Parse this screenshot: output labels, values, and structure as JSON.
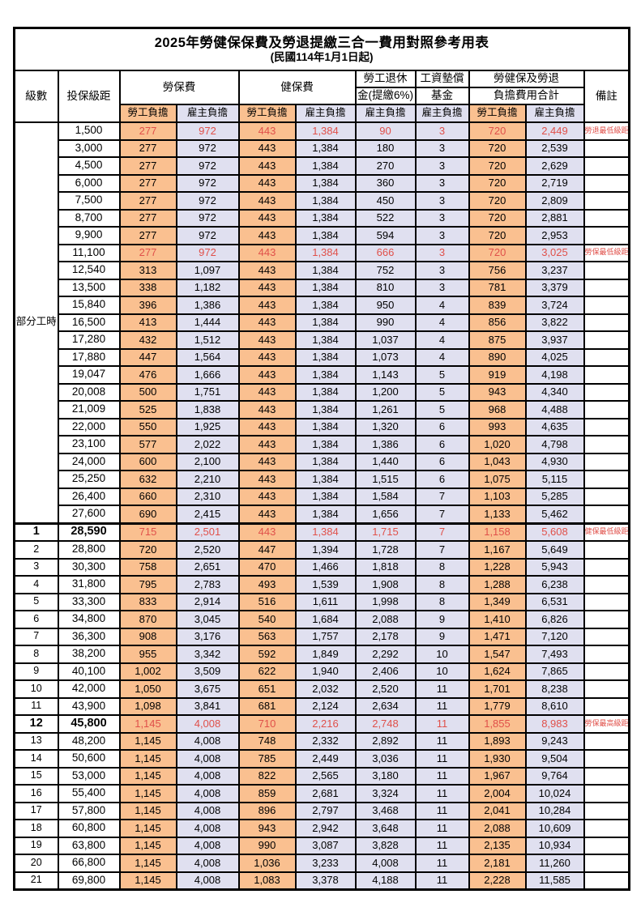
{
  "table": {
    "title": "2025年勞健保保費及勞退提繳三合一費用對照參考用表",
    "subtitle": "(民國114年1月1日起)",
    "headers": {
      "level": "級數",
      "bracket": "投保級距",
      "labor_fee": "勞保費",
      "health_fee": "健保費",
      "pension_top": "勞工退休",
      "pension_bottom": "金(提繳6%)",
      "wage_fund_top": "工資墊償",
      "wage_fund_bottom": "基金",
      "total_top": "勞健保及勞退",
      "total_bottom": "負擔費用合計",
      "remark": "備註",
      "employee_share": "勞工負擔",
      "employer_share": "雇主負擔"
    },
    "part_time_label": "部分工時",
    "part_time_rowspan": 23,
    "colors": {
      "employee_bg": "#FAC090",
      "employer_bg": "#E0E0F0",
      "highlight_text": "#E0504A",
      "border": "#000000"
    },
    "rows": [
      {
        "level": "",
        "bracket": "1,500",
        "values": [
          "277",
          "972",
          "443",
          "1,384",
          "90",
          "3",
          "720",
          "2,449"
        ],
        "remark": "勞退最低級距",
        "red": true,
        "bold": false
      },
      {
        "level": "",
        "bracket": "3,000",
        "values": [
          "277",
          "972",
          "443",
          "1,384",
          "180",
          "3",
          "720",
          "2,539"
        ],
        "remark": "",
        "red": false,
        "bold": false
      },
      {
        "level": "",
        "bracket": "4,500",
        "values": [
          "277",
          "972",
          "443",
          "1,384",
          "270",
          "3",
          "720",
          "2,629"
        ],
        "remark": "",
        "red": false,
        "bold": false
      },
      {
        "level": "",
        "bracket": "6,000",
        "values": [
          "277",
          "972",
          "443",
          "1,384",
          "360",
          "3",
          "720",
          "2,719"
        ],
        "remark": "",
        "red": false,
        "bold": false
      },
      {
        "level": "",
        "bracket": "7,500",
        "values": [
          "277",
          "972",
          "443",
          "1,384",
          "450",
          "3",
          "720",
          "2,809"
        ],
        "remark": "",
        "red": false,
        "bold": false
      },
      {
        "level": "",
        "bracket": "8,700",
        "values": [
          "277",
          "972",
          "443",
          "1,384",
          "522",
          "3",
          "720",
          "2,881"
        ],
        "remark": "",
        "red": false,
        "bold": false
      },
      {
        "level": "",
        "bracket": "9,900",
        "values": [
          "277",
          "972",
          "443",
          "1,384",
          "594",
          "3",
          "720",
          "2,953"
        ],
        "remark": "",
        "red": false,
        "bold": false
      },
      {
        "level": "",
        "bracket": "11,100",
        "values": [
          "277",
          "972",
          "443",
          "1,384",
          "666",
          "3",
          "720",
          "3,025"
        ],
        "remark": "勞保最低級距",
        "red": true,
        "bold": false
      },
      {
        "level": "",
        "bracket": "12,540",
        "values": [
          "313",
          "1,097",
          "443",
          "1,384",
          "752",
          "3",
          "756",
          "3,237"
        ],
        "remark": "",
        "red": false,
        "bold": false
      },
      {
        "level": "",
        "bracket": "13,500",
        "values": [
          "338",
          "1,182",
          "443",
          "1,384",
          "810",
          "3",
          "781",
          "3,379"
        ],
        "remark": "",
        "red": false,
        "bold": false
      },
      {
        "level": "",
        "bracket": "15,840",
        "values": [
          "396",
          "1,386",
          "443",
          "1,384",
          "950",
          "4",
          "839",
          "3,724"
        ],
        "remark": "",
        "red": false,
        "bold": false
      },
      {
        "level": "",
        "bracket": "16,500",
        "values": [
          "413",
          "1,444",
          "443",
          "1,384",
          "990",
          "4",
          "856",
          "3,822"
        ],
        "remark": "",
        "red": false,
        "bold": false
      },
      {
        "level": "",
        "bracket": "17,280",
        "values": [
          "432",
          "1,512",
          "443",
          "1,384",
          "1,037",
          "4",
          "875",
          "3,937"
        ],
        "remark": "",
        "red": false,
        "bold": false
      },
      {
        "level": "",
        "bracket": "17,880",
        "values": [
          "447",
          "1,564",
          "443",
          "1,384",
          "1,073",
          "4",
          "890",
          "4,025"
        ],
        "remark": "",
        "red": false,
        "bold": false
      },
      {
        "level": "",
        "bracket": "19,047",
        "values": [
          "476",
          "1,666",
          "443",
          "1,384",
          "1,143",
          "5",
          "919",
          "4,198"
        ],
        "remark": "",
        "red": false,
        "bold": false
      },
      {
        "level": "",
        "bracket": "20,008",
        "values": [
          "500",
          "1,751",
          "443",
          "1,384",
          "1,200",
          "5",
          "943",
          "4,340"
        ],
        "remark": "",
        "red": false,
        "bold": false
      },
      {
        "level": "",
        "bracket": "21,009",
        "values": [
          "525",
          "1,838",
          "443",
          "1,384",
          "1,261",
          "5",
          "968",
          "4,488"
        ],
        "remark": "",
        "red": false,
        "bold": false
      },
      {
        "level": "",
        "bracket": "22,000",
        "values": [
          "550",
          "1,925",
          "443",
          "1,384",
          "1,320",
          "6",
          "993",
          "4,635"
        ],
        "remark": "",
        "red": false,
        "bold": false
      },
      {
        "level": "",
        "bracket": "23,100",
        "values": [
          "577",
          "2,022",
          "443",
          "1,384",
          "1,386",
          "6",
          "1,020",
          "4,798"
        ],
        "remark": "",
        "red": false,
        "bold": false
      },
      {
        "level": "",
        "bracket": "24,000",
        "values": [
          "600",
          "2,100",
          "443",
          "1,384",
          "1,440",
          "6",
          "1,043",
          "4,930"
        ],
        "remark": "",
        "red": false,
        "bold": false
      },
      {
        "level": "",
        "bracket": "25,250",
        "values": [
          "632",
          "2,210",
          "443",
          "1,384",
          "1,515",
          "6",
          "1,075",
          "5,115"
        ],
        "remark": "",
        "red": false,
        "bold": false
      },
      {
        "level": "",
        "bracket": "26,400",
        "values": [
          "660",
          "2,310",
          "443",
          "1,384",
          "1,584",
          "7",
          "1,103",
          "5,285"
        ],
        "remark": "",
        "red": false,
        "bold": false
      },
      {
        "level": "",
        "bracket": "27,600",
        "values": [
          "690",
          "2,415",
          "443",
          "1,384",
          "1,656",
          "7",
          "1,133",
          "5,462"
        ],
        "remark": "",
        "red": false,
        "bold": false
      },
      {
        "level": "1",
        "bracket": "28,590",
        "values": [
          "715",
          "2,501",
          "443",
          "1,384",
          "1,715",
          "7",
          "1,158",
          "5,608"
        ],
        "remark": "健保最低級距",
        "red": true,
        "bold": true,
        "section_start": true
      },
      {
        "level": "2",
        "bracket": "28,800",
        "values": [
          "720",
          "2,520",
          "447",
          "1,394",
          "1,728",
          "7",
          "1,167",
          "5,649"
        ],
        "remark": "",
        "red": false,
        "bold": false
      },
      {
        "level": "3",
        "bracket": "30,300",
        "values": [
          "758",
          "2,651",
          "470",
          "1,466",
          "1,818",
          "8",
          "1,228",
          "5,943"
        ],
        "remark": "",
        "red": false,
        "bold": false
      },
      {
        "level": "4",
        "bracket": "31,800",
        "values": [
          "795",
          "2,783",
          "493",
          "1,539",
          "1,908",
          "8",
          "1,288",
          "6,238"
        ],
        "remark": "",
        "red": false,
        "bold": false
      },
      {
        "level": "5",
        "bracket": "33,300",
        "values": [
          "833",
          "2,914",
          "516",
          "1,611",
          "1,998",
          "8",
          "1,349",
          "6,531"
        ],
        "remark": "",
        "red": false,
        "bold": false
      },
      {
        "level": "6",
        "bracket": "34,800",
        "values": [
          "870",
          "3,045",
          "540",
          "1,684",
          "2,088",
          "9",
          "1,410",
          "6,826"
        ],
        "remark": "",
        "red": false,
        "bold": false
      },
      {
        "level": "7",
        "bracket": "36,300",
        "values": [
          "908",
          "3,176",
          "563",
          "1,757",
          "2,178",
          "9",
          "1,471",
          "7,120"
        ],
        "remark": "",
        "red": false,
        "bold": false
      },
      {
        "level": "8",
        "bracket": "38,200",
        "values": [
          "955",
          "3,342",
          "592",
          "1,849",
          "2,292",
          "10",
          "1,547",
          "7,493"
        ],
        "remark": "",
        "red": false,
        "bold": false
      },
      {
        "level": "9",
        "bracket": "40,100",
        "values": [
          "1,002",
          "3,509",
          "622",
          "1,940",
          "2,406",
          "10",
          "1,624",
          "7,865"
        ],
        "remark": "",
        "red": false,
        "bold": false
      },
      {
        "level": "10",
        "bracket": "42,000",
        "values": [
          "1,050",
          "3,675",
          "651",
          "2,032",
          "2,520",
          "11",
          "1,701",
          "8,238"
        ],
        "remark": "",
        "red": false,
        "bold": false
      },
      {
        "level": "11",
        "bracket": "43,900",
        "values": [
          "1,098",
          "3,841",
          "681",
          "2,124",
          "2,634",
          "11",
          "1,779",
          "8,610"
        ],
        "remark": "",
        "red": false,
        "bold": false
      },
      {
        "level": "12",
        "bracket": "45,800",
        "values": [
          "1,145",
          "4,008",
          "710",
          "2,216",
          "2,748",
          "11",
          "1,855",
          "8,983"
        ],
        "remark": "勞保最高級距",
        "red": true,
        "bold": true
      },
      {
        "level": "13",
        "bracket": "48,200",
        "values": [
          "1,145",
          "4,008",
          "748",
          "2,332",
          "2,892",
          "11",
          "1,893",
          "9,243"
        ],
        "remark": "",
        "red": false,
        "bold": false
      },
      {
        "level": "14",
        "bracket": "50,600",
        "values": [
          "1,145",
          "4,008",
          "785",
          "2,449",
          "3,036",
          "11",
          "1,930",
          "9,504"
        ],
        "remark": "",
        "red": false,
        "bold": false
      },
      {
        "level": "15",
        "bracket": "53,000",
        "values": [
          "1,145",
          "4,008",
          "822",
          "2,565",
          "3,180",
          "11",
          "1,967",
          "9,764"
        ],
        "remark": "",
        "red": false,
        "bold": false
      },
      {
        "level": "16",
        "bracket": "55,400",
        "values": [
          "1,145",
          "4,008",
          "859",
          "2,681",
          "3,324",
          "11",
          "2,004",
          "10,024"
        ],
        "remark": "",
        "red": false,
        "bold": false
      },
      {
        "level": "17",
        "bracket": "57,800",
        "values": [
          "1,145",
          "4,008",
          "896",
          "2,797",
          "3,468",
          "11",
          "2,041",
          "10,284"
        ],
        "remark": "",
        "red": false,
        "bold": false
      },
      {
        "level": "18",
        "bracket": "60,800",
        "values": [
          "1,145",
          "4,008",
          "943",
          "2,942",
          "3,648",
          "11",
          "2,088",
          "10,609"
        ],
        "remark": "",
        "red": false,
        "bold": false
      },
      {
        "level": "19",
        "bracket": "63,800",
        "values": [
          "1,145",
          "4,008",
          "990",
          "3,087",
          "3,828",
          "11",
          "2,135",
          "10,934"
        ],
        "remark": "",
        "red": false,
        "bold": false
      },
      {
        "level": "20",
        "bracket": "66,800",
        "values": [
          "1,145",
          "4,008",
          "1,036",
          "3,233",
          "4,008",
          "11",
          "2,181",
          "11,260"
        ],
        "remark": "",
        "red": false,
        "bold": false
      },
      {
        "level": "21",
        "bracket": "69,800",
        "values": [
          "1,145",
          "4,008",
          "1,083",
          "3,378",
          "4,188",
          "11",
          "2,228",
          "11,585"
        ],
        "remark": "",
        "red": false,
        "bold": false
      }
    ]
  }
}
